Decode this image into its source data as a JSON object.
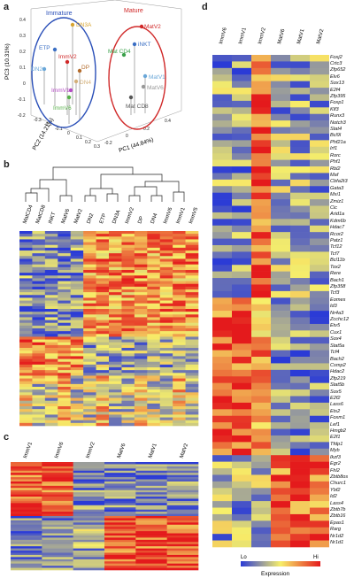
{
  "panels": {
    "a": "a",
    "b": "b",
    "c": "c",
    "d": "d"
  },
  "pca": {
    "axis_pc1": "PC1 (44.84%)",
    "axis_pc2": "PC2 (14.21%)",
    "axis_pc3": "PC3 (10.31%)",
    "group_immature": "Immature",
    "group_mature": "Mature",
    "ticks_pc3": [
      "0.4",
      "0.3",
      "0.2",
      "0.1",
      "0",
      "-0.1",
      "-0.2"
    ],
    "ticks_pc2": [
      "-0.3",
      "-0.2",
      "-0.1",
      "0",
      "0.1",
      "0.2",
      "0.3"
    ],
    "ticks_pc1": [
      "-0.2",
      "0",
      "0.2",
      "0.4"
    ],
    "labels": {
      "DN3A": "DN3A",
      "ETP": "ETP",
      "DN2": "DN2",
      "DN4": "DN4",
      "DP": "DP",
      "ImmV2": "ImmV2",
      "ImmV1": "ImmV1",
      "ImmV6": "ImmV6",
      "MatV2": "MatV2",
      "MatCD4": "Mat CD4",
      "iNKT": "iNKT",
      "MatV1": "MatV1",
      "MatV6": "MatV6",
      "MatCD8": "Mat CD8"
    }
  },
  "b": {
    "columns": [
      "MatCD4",
      "MatCD8",
      "iNKT",
      "MatV6",
      "MatV2",
      "DN2",
      "ETP",
      "DN3A",
      "ImmV2",
      "DP",
      "DN4",
      "ImmV6",
      "ImmV1",
      "ImmV5"
    ]
  },
  "c": {
    "columns": [
      "ImmV1",
      "ImmV6",
      "ImmV2",
      "MatV6",
      "MatV1",
      "MatV2"
    ]
  },
  "d": {
    "columns": [
      "ImmV6",
      "ImmV1",
      "ImmV2",
      "MatV6",
      "MatV1",
      "MatV2"
    ],
    "genes": [
      "Foxj2",
      "Crtc3",
      "Zfp652",
      "Elv6",
      "Sox13",
      "E2f4",
      "Zfp395",
      "Foxp1",
      "Klf3",
      "Runx3",
      "Notch3",
      "Stat4",
      "Bcl9l",
      "Phf21a",
      "Irf1",
      "Rorc",
      "Phf1",
      "Rbl2",
      "Maf",
      "Cbfa2t3",
      "Gata3",
      "Mxi1",
      "Zmiz1",
      "Cic",
      "Arid1a",
      "Kdm6b",
      "Hdac7",
      "Rcor2",
      "Patz1",
      "Tcf12",
      "Tcf7",
      "Bcl11b",
      "Tox2",
      "Rere",
      "Bach1",
      "Zfp358",
      "Tcf3",
      "Eomes",
      "Id3",
      "Nr4a3",
      "Zcchc12",
      "Etv5",
      "Cux1",
      "Sox4",
      "Stat5a",
      "Tcf4",
      "Bach2",
      "Csmp2",
      "Hdac2",
      "Zfp219",
      "Stat5b",
      "Sox5",
      "E2f2",
      "Lass6",
      "Ets2",
      "Foxm1",
      "Lef1",
      "Hmgb2",
      "E2f1",
      "Tfdp1",
      "Myb",
      "Ikzf3",
      "Egr2",
      "Fhl2",
      "Zbtb8os",
      "Churc1",
      "Ybf2",
      "Id2",
      "Lass4",
      "Zbtb7b",
      "Zbtb16",
      "Epas1",
      "Rarg",
      "Nr1d2",
      "Nr1d1"
    ],
    "legend_lo": "Lo",
    "legend_hi": "Hi",
    "legend_title": "Expression"
  },
  "colors": {
    "low": "#2b3bd6",
    "mid": "#f7ef6a",
    "high": "#e41a1c",
    "immature_ring": "#2a4fb8",
    "mature_ring": "#d02828"
  }
}
